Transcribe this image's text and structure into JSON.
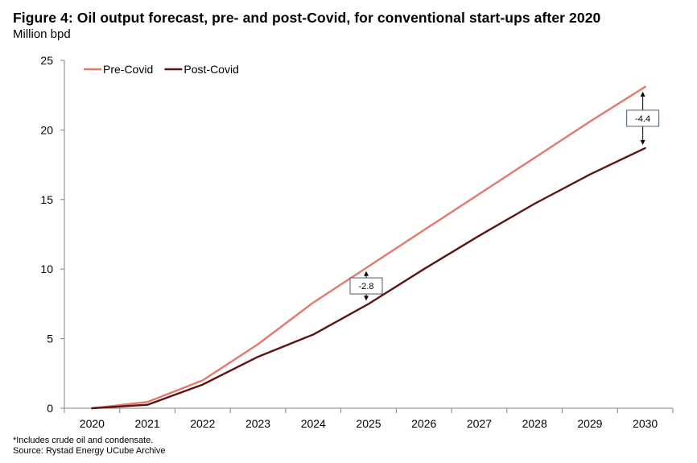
{
  "header": {
    "title": "Figure 4: Oil output forecast, pre- and post-Covid, for conventional start-ups after 2020",
    "subtitle": "Million bpd"
  },
  "footer": {
    "note": "*Includes crude oil and condensate.",
    "source": "Source: Rystad Energy UCube Archive"
  },
  "colors": {
    "pre_covid": "#e07b6a",
    "post_covid": "#5c1414",
    "axis": "#808080"
  },
  "chart_data": {
    "type": "line",
    "title": "Figure 4: Oil output forecast, pre- and post-Covid, for conventional start-ups after 2020",
    "ylabel": "Million bpd",
    "xlabel": "",
    "x": [
      "2020",
      "2021",
      "2022",
      "2023",
      "2024",
      "2025",
      "2026",
      "2027",
      "2028",
      "2029",
      "2030"
    ],
    "ylim": [
      0,
      25
    ],
    "yticks": [
      0,
      5,
      10,
      15,
      20,
      25
    ],
    "grid": false,
    "legend": "top-left",
    "series": [
      {
        "name": "Pre-Covid",
        "color": "#e07b6a",
        "values": [
          0,
          0.45,
          2.0,
          4.6,
          7.6,
          10.2,
          12.8,
          15.4,
          18.0,
          20.6,
          23.1
        ]
      },
      {
        "name": "Post-Covid",
        "color": "#5c1414",
        "values": [
          0,
          0.25,
          1.7,
          3.7,
          5.3,
          7.5,
          10.0,
          12.4,
          14.7,
          16.8,
          18.7
        ]
      }
    ],
    "annotations": [
      {
        "x": "2025",
        "label": "-2.8"
      },
      {
        "x": "2030",
        "label": "-4.4"
      }
    ]
  }
}
